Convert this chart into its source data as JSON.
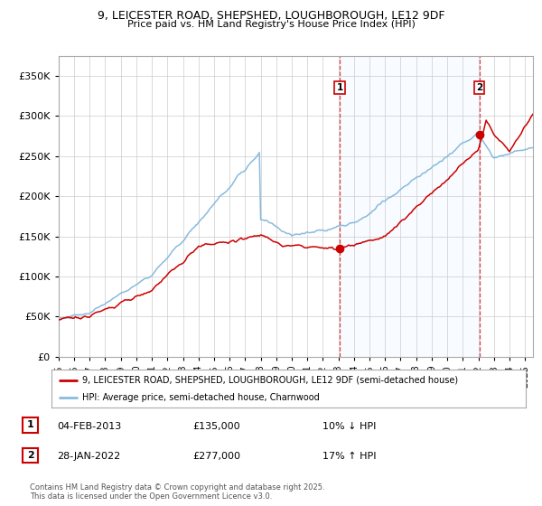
{
  "title_line1": "9, LEICESTER ROAD, SHEPSHED, LOUGHBOROUGH, LE12 9DF",
  "title_line2": "Price paid vs. HM Land Registry's House Price Index (HPI)",
  "legend_label1": "9, LEICESTER ROAD, SHEPSHED, LOUGHBOROUGH, LE12 9DF (semi-detached house)",
  "legend_label2": "HPI: Average price, semi-detached house, Charnwood",
  "sale1_date": "04-FEB-2013",
  "sale1_price": 135000,
  "sale1_year": 2013.09,
  "sale2_date": "28-JAN-2022",
  "sale2_price": 277000,
  "sale2_year": 2022.07,
  "sale1_hpi_text": "10% ↓ HPI",
  "sale2_hpi_text": "17% ↑ HPI",
  "footer": "Contains HM Land Registry data © Crown copyright and database right 2025.\nThis data is licensed under the Open Government Licence v3.0.",
  "line_color_property": "#cc0000",
  "line_color_hpi": "#88bbdd",
  "dot_color": "#cc0000",
  "vline_color": "#dd4444",
  "shade_color": "#ddeeff",
  "background_color": "#ffffff",
  "ylim_min": 0,
  "ylim_max": 375000,
  "yticks": [
    0,
    50000,
    100000,
    150000,
    200000,
    250000,
    300000,
    350000
  ],
  "xmin": 1995,
  "xmax": 2025.5
}
